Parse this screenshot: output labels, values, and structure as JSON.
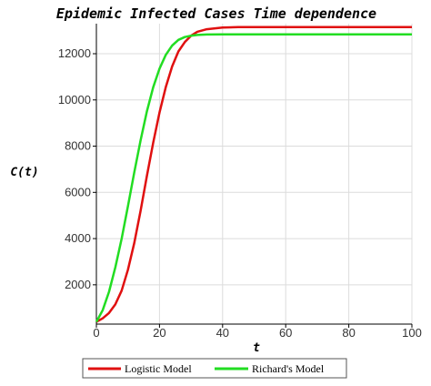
{
  "chart_data": {
    "type": "line",
    "title": "Epidemic Infected Cases Time dependence",
    "xlabel": "t",
    "ylabel": "C(t)",
    "xlim": [
      0,
      100
    ],
    "ylim": [
      300,
      13300
    ],
    "xticks": [
      "0",
      "20",
      "40",
      "60",
      "80",
      "100"
    ],
    "yticks": [
      "2000",
      "4000",
      "6000",
      "8000",
      "10000",
      "12000"
    ],
    "grid": true,
    "legend_position": "bottom",
    "series": [
      {
        "name": "Logistic Model",
        "color": "#e01010",
        "x": [
          0,
          2,
          4,
          6,
          8,
          10,
          12,
          14,
          16,
          18,
          20,
          22,
          24,
          26,
          28,
          30,
          32,
          35,
          40,
          45,
          50,
          60,
          70,
          80,
          90,
          100
        ],
        "y": [
          400,
          550,
          780,
          1150,
          1750,
          2650,
          3800,
          5200,
          6700,
          8150,
          9450,
          10550,
          11450,
          12100,
          12500,
          12780,
          12950,
          13060,
          13130,
          13150,
          13150,
          13150,
          13150,
          13150,
          13150,
          13150
        ]
      },
      {
        "name": "Richard's Model",
        "color": "#22dd22",
        "x": [
          0,
          2,
          4,
          6,
          8,
          10,
          12,
          14,
          16,
          18,
          20,
          22,
          24,
          26,
          28,
          30,
          32,
          35,
          40,
          45,
          50,
          60,
          70,
          80,
          90,
          100
        ],
        "y": [
          400,
          900,
          1700,
          2750,
          4000,
          5400,
          6850,
          8250,
          9500,
          10550,
          11350,
          11950,
          12350,
          12600,
          12720,
          12780,
          12810,
          12830,
          12840,
          12840,
          12840,
          12840,
          12840,
          12840,
          12840,
          12840
        ]
      }
    ]
  }
}
